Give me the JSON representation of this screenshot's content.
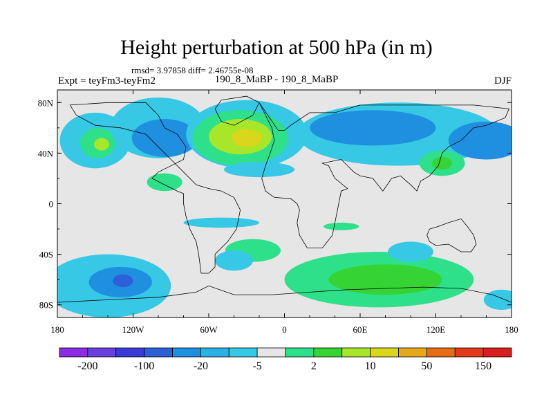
{
  "title": "Height perturbation at 500 hPa (in m)",
  "stats": "rmsd= 3.97858 diff= 2.46755e-08",
  "experiment": "Expt = teyFm3-teyFm2",
  "center_label": "190_8_MaBP - 190_8_MaBP",
  "season": "DJF",
  "lon_ticks": [
    {
      "lon": -180,
      "label": "180"
    },
    {
      "lon": -120,
      "label": "120W"
    },
    {
      "lon": -60,
      "label": "60W"
    },
    {
      "lon": 0,
      "label": "0"
    },
    {
      "lon": 60,
      "label": "60E"
    },
    {
      "lon": 120,
      "label": "120E"
    },
    {
      "lon": 180,
      "label": "180"
    }
  ],
  "lat_ticks": [
    {
      "lat": 80,
      "label": "80N"
    },
    {
      "lat": 40,
      "label": "40N"
    },
    {
      "lat": 0,
      "label": "0"
    },
    {
      "lat": -40,
      "label": "40S"
    },
    {
      "lat": -80,
      "label": "80S"
    }
  ],
  "colorbar": {
    "colors": [
      "#8b2be2",
      "#6a3fe0",
      "#3a3ad8",
      "#2c5fd8",
      "#1f8fe0",
      "#29b3e4",
      "#36c8e4",
      "#e6e6e6",
      "#2ee08a",
      "#35d434",
      "#a8e62a",
      "#d9d61c",
      "#e6a91a",
      "#e56b14",
      "#e2381c",
      "#d81e1e"
    ],
    "labels": [
      {
        "after_index": 0,
        "label": "-200"
      },
      {
        "after_index": 2,
        "label": "-100"
      },
      {
        "after_index": 4,
        "label": "-20"
      },
      {
        "after_index": 6,
        "label": "-5"
      },
      {
        "after_index": 8,
        "label": "2"
      },
      {
        "after_index": 10,
        "label": "10"
      },
      {
        "after_index": 12,
        "label": "50"
      },
      {
        "after_index": 14,
        "label": "150"
      }
    ]
  },
  "palette": {
    "background": "#e6e6e6",
    "n1": "#36c8e4",
    "n2": "#1f8fe0",
    "n3": "#2c5fd8",
    "p1": "#2ee08a",
    "p2": "#35d434",
    "p3": "#a8e62a",
    "p4": "#d9d61c",
    "coast": "#000000"
  },
  "field_blobs": [
    {
      "lon": -150,
      "lat": 50,
      "rlon": 28,
      "rlat": 22,
      "level": "n1"
    },
    {
      "lon": -148,
      "lat": 48,
      "rlon": 14,
      "rlat": 12,
      "level": "p1"
    },
    {
      "lon": -145,
      "lat": 47,
      "rlon": 6,
      "rlat": 5,
      "level": "p3"
    },
    {
      "lon": -100,
      "lat": 60,
      "rlon": 38,
      "rlat": 24,
      "level": "n1"
    },
    {
      "lon": -95,
      "lat": 52,
      "rlon": 26,
      "rlat": 15,
      "level": "n2"
    },
    {
      "lon": -30,
      "lat": 55,
      "rlon": 48,
      "rlat": 27,
      "level": "n1"
    },
    {
      "lon": -35,
      "lat": 52,
      "rlon": 38,
      "rlat": 22,
      "level": "p1"
    },
    {
      "lon": -35,
      "lat": 53,
      "rlon": 25,
      "rlat": 14,
      "level": "p3"
    },
    {
      "lon": -30,
      "lat": 52,
      "rlon": 12,
      "rlat": 7,
      "level": "p4"
    },
    {
      "lon": 90,
      "lat": 55,
      "rlon": 80,
      "rlat": 25,
      "level": "n1"
    },
    {
      "lon": 70,
      "lat": 60,
      "rlon": 50,
      "rlat": 14,
      "level": "n2"
    },
    {
      "lon": 160,
      "lat": 50,
      "rlon": 30,
      "rlat": 15,
      "level": "n2"
    },
    {
      "lon": -20,
      "lat": 27,
      "rlon": 28,
      "rlat": 6,
      "level": "n1"
    },
    {
      "lon": -95,
      "lat": 17,
      "rlon": 14,
      "rlat": 7,
      "level": "p1"
    },
    {
      "lon": 125,
      "lat": 32,
      "rlon": 18,
      "rlat": 10,
      "level": "p1"
    },
    {
      "lon": 125,
      "lat": 32,
      "rlon": 8,
      "rlat": 5,
      "level": "p2"
    },
    {
      "lon": -140,
      "lat": -65,
      "rlon": 50,
      "rlat": 25,
      "level": "n1"
    },
    {
      "lon": -130,
      "lat": -62,
      "rlon": 25,
      "rlat": 12,
      "level": "n2"
    },
    {
      "lon": -128,
      "lat": -61,
      "rlon": 8,
      "rlat": 5,
      "level": "n3"
    },
    {
      "lon": 75,
      "lat": -60,
      "rlon": 75,
      "rlat": 22,
      "level": "p1"
    },
    {
      "lon": 80,
      "lat": -60,
      "rlon": 45,
      "rlat": 12,
      "level": "p2"
    },
    {
      "lon": -25,
      "lat": -37,
      "rlon": 22,
      "rlat": 9,
      "level": "p1"
    },
    {
      "lon": -40,
      "lat": -45,
      "rlon": 15,
      "rlat": 8,
      "level": "n1"
    },
    {
      "lon": 100,
      "lat": -38,
      "rlon": 18,
      "rlat": 8,
      "level": "n1"
    },
    {
      "lon": -50,
      "lat": -15,
      "rlon": 30,
      "rlat": 4,
      "level": "n1"
    },
    {
      "lon": 45,
      "lat": -18,
      "rlon": 14,
      "rlat": 3,
      "level": "p1"
    },
    {
      "lon": 172,
      "lat": -76,
      "rlon": 14,
      "rlat": 8,
      "level": "n1"
    }
  ],
  "coastlines": [
    [
      [
        -100,
        70
      ],
      [
        -95,
        60
      ],
      [
        -85,
        55
      ],
      [
        -78,
        45
      ],
      [
        -80,
        35
      ],
      [
        -90,
        30
      ],
      [
        -100,
        25
      ],
      [
        -105,
        20
      ],
      [
        -95,
        15
      ],
      [
        -85,
        10
      ],
      [
        -80,
        8
      ],
      [
        -80,
        0
      ],
      [
        -78,
        -10
      ],
      [
        -75,
        -20
      ],
      [
        -70,
        -30
      ],
      [
        -68,
        -40
      ],
      [
        -66,
        -55
      ],
      [
        -60,
        -55
      ],
      [
        -55,
        -50
      ],
      [
        -55,
        -40
      ],
      [
        -45,
        -30
      ],
      [
        -38,
        -20
      ],
      [
        -35,
        -5
      ],
      [
        -40,
        5
      ],
      [
        -50,
        10
      ],
      [
        -60,
        12
      ],
      [
        -70,
        15
      ],
      [
        -80,
        25
      ],
      [
        -90,
        35
      ],
      [
        -100,
        45
      ],
      [
        -110,
        55
      ],
      [
        -130,
        60
      ],
      [
        -150,
        62
      ],
      [
        -165,
        70
      ],
      [
        -170,
        78
      ],
      [
        -140,
        80
      ],
      [
        -110,
        80
      ],
      [
        -100,
        70
      ]
    ],
    [
      [
        -50,
        82
      ],
      [
        -30,
        85
      ],
      [
        -20,
        80
      ],
      [
        -25,
        70
      ],
      [
        -40,
        62
      ],
      [
        -50,
        65
      ],
      [
        -55,
        75
      ],
      [
        -50,
        82
      ]
    ],
    [
      [
        -20,
        80
      ],
      [
        -15,
        70
      ],
      [
        -10,
        60
      ],
      [
        -8,
        50
      ],
      [
        -12,
        38
      ],
      [
        -15,
        30
      ],
      [
        -18,
        20
      ],
      [
        -15,
        10
      ],
      [
        -8,
        5
      ],
      [
        5,
        4
      ],
      [
        10,
        0
      ],
      [
        12,
        -5
      ],
      [
        10,
        -15
      ],
      [
        12,
        -25
      ],
      [
        18,
        -35
      ],
      [
        30,
        -35
      ],
      [
        38,
        -25
      ],
      [
        40,
        -15
      ],
      [
        42,
        -5
      ],
      [
        45,
        10
      ],
      [
        50,
        12
      ],
      [
        40,
        20
      ],
      [
        35,
        30
      ],
      [
        30,
        32
      ],
      [
        45,
        35
      ],
      [
        55,
        25
      ],
      [
        60,
        22
      ],
      [
        70,
        20
      ],
      [
        78,
        10
      ],
      [
        85,
        20
      ],
      [
        92,
        22
      ],
      [
        100,
        15
      ],
      [
        105,
        10
      ],
      [
        108,
        18
      ],
      [
        115,
        22
      ],
      [
        122,
        30
      ],
      [
        125,
        40
      ],
      [
        130,
        45
      ],
      [
        140,
        50
      ],
      [
        150,
        60
      ],
      [
        160,
        62
      ],
      [
        175,
        68
      ],
      [
        178,
        75
      ],
      [
        150,
        78
      ],
      [
        120,
        78
      ],
      [
        90,
        78
      ],
      [
        60,
        78
      ],
      [
        40,
        72
      ],
      [
        20,
        72
      ],
      [
        5,
        62
      ],
      [
        0,
        58
      ],
      [
        -5,
        58
      ],
      [
        -20,
        80
      ]
    ],
    [
      [
        115,
        -20
      ],
      [
        122,
        -18
      ],
      [
        130,
        -15
      ],
      [
        140,
        -12
      ],
      [
        145,
        -18
      ],
      [
        150,
        -25
      ],
      [
        152,
        -32
      ],
      [
        148,
        -38
      ],
      [
        140,
        -38
      ],
      [
        130,
        -32
      ],
      [
        120,
        -33
      ],
      [
        115,
        -30
      ],
      [
        113,
        -25
      ],
      [
        115,
        -20
      ]
    ],
    [
      [
        -180,
        -78
      ],
      [
        -140,
        -76
      ],
      [
        -100,
        -74
      ],
      [
        -70,
        -70
      ],
      [
        -60,
        -65
      ],
      [
        -40,
        -72
      ],
      [
        -10,
        -72
      ],
      [
        20,
        -70
      ],
      [
        50,
        -68
      ],
      [
        80,
        -67
      ],
      [
        110,
        -66
      ],
      [
        140,
        -67
      ],
      [
        165,
        -72
      ],
      [
        180,
        -78
      ]
    ]
  ]
}
